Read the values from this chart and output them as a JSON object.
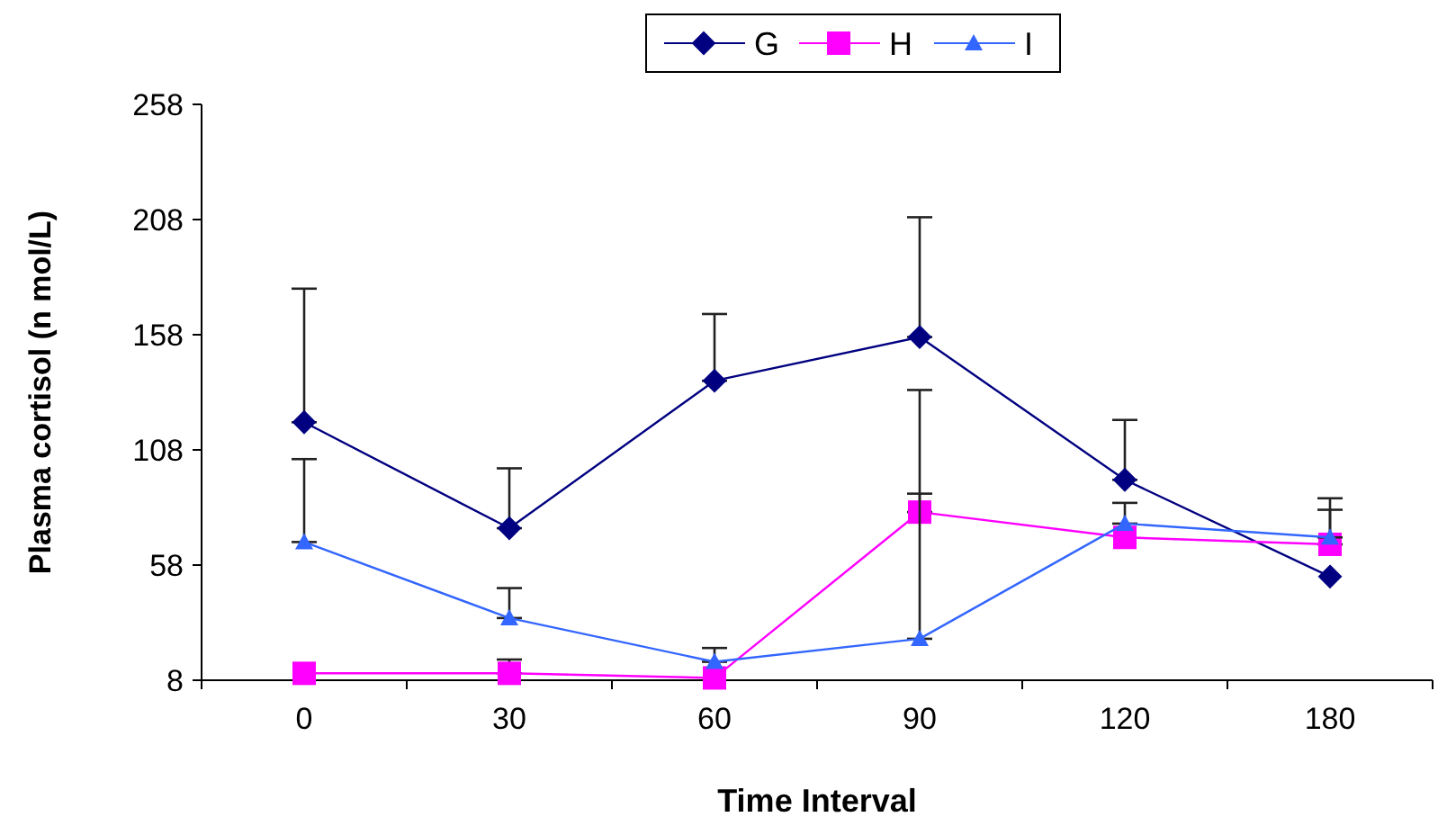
{
  "chart_data": {
    "type": "line",
    "xlabel": "Time Interval",
    "ylabel": "Plasma cortisol (n mol/L)",
    "categories": [
      "0",
      "30",
      "60",
      "90",
      "120",
      "180"
    ],
    "series": [
      {
        "name": "G",
        "color": "#000080",
        "marker": "diamond",
        "values": [
          120,
          74,
          138,
          157,
          95,
          53
        ],
        "errors": [
          [
            120,
            178
          ],
          [
            74,
            100
          ],
          [
            138,
            167
          ],
          [
            157,
            209
          ],
          [
            95,
            121
          ],
          null
        ]
      },
      {
        "name": "H",
        "color": "#ff00ff",
        "marker": "square",
        "values": [
          11,
          11,
          9,
          81,
          70,
          67
        ],
        "errors": [
          null,
          [
            11,
            17
          ],
          null,
          [
            81,
            134
          ],
          null,
          [
            67,
            82
          ]
        ]
      },
      {
        "name": "I",
        "color": "#3366ff",
        "marker": "triangle",
        "values": [
          68,
          35,
          16,
          26,
          76,
          70
        ],
        "errors": [
          [
            68,
            104
          ],
          [
            35,
            48
          ],
          [
            16,
            22
          ],
          [
            26,
            89
          ],
          [
            76,
            85
          ],
          [
            70,
            87
          ]
        ]
      }
    ],
    "ylim": [
      8,
      258
    ],
    "yticks": [
      8,
      58,
      108,
      158,
      208,
      258
    ],
    "grid": false,
    "legend": "top"
  }
}
